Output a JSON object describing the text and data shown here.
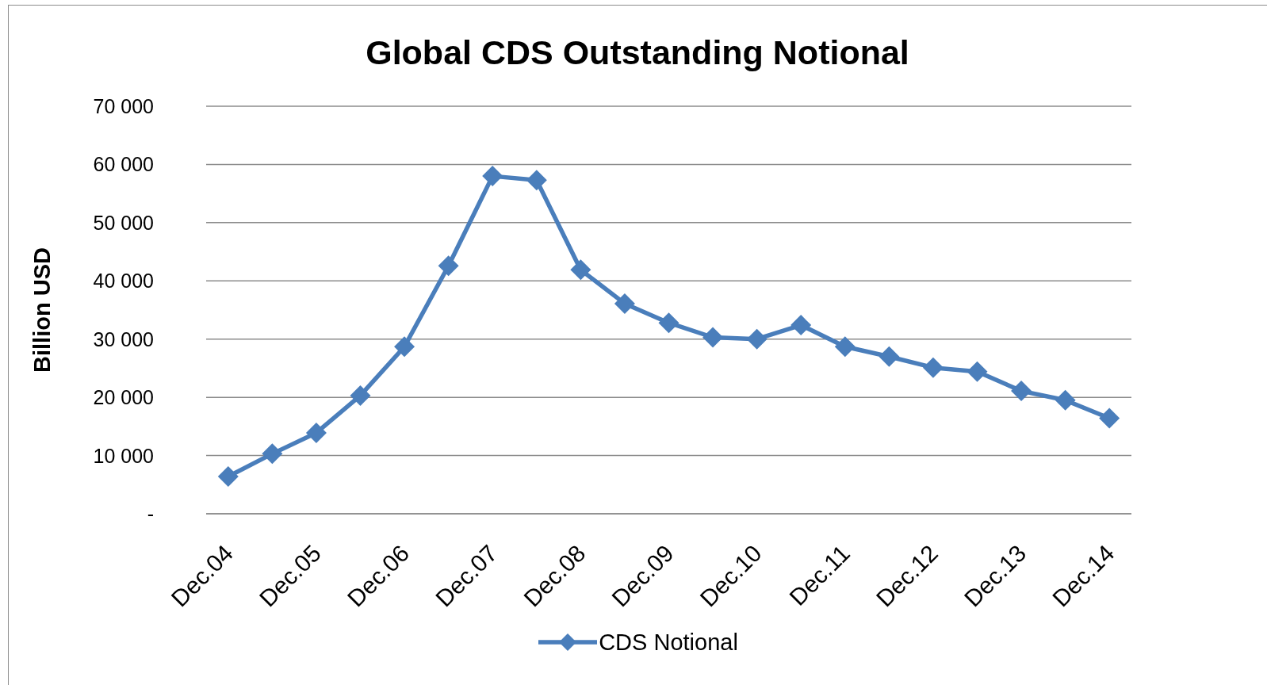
{
  "chart_data": {
    "type": "line",
    "title": "Global CDS Outstanding Notional",
    "ylabel": "Billion USD",
    "categories": [
      "Dec.04",
      null,
      "Dec.05",
      null,
      "Dec.06",
      null,
      "Dec.07",
      null,
      "Dec.08",
      null,
      "Dec.09",
      null,
      "Dec.10",
      null,
      "Dec.11",
      null,
      "Dec.12",
      null,
      "Dec.13",
      null,
      "Dec.14"
    ],
    "series": [
      {
        "name": "CDS Notional",
        "color": "#4a7ebb",
        "values": [
          6400,
          10300,
          13900,
          20300,
          28700,
          42600,
          58000,
          57300,
          41900,
          36100,
          32800,
          30300,
          30000,
          32400,
          28700,
          27000,
          25100,
          24400,
          21100,
          19500,
          16400
        ]
      }
    ],
    "ylim": [
      0,
      70000
    ],
    "yticks": [
      {
        "value": 0,
        "label": "-"
      },
      {
        "value": 10000,
        "label": "10 000"
      },
      {
        "value": 20000,
        "label": "20 000"
      },
      {
        "value": 30000,
        "label": "30 000"
      },
      {
        "value": 40000,
        "label": "40 000"
      },
      {
        "value": 50000,
        "label": "50 000"
      },
      {
        "value": 60000,
        "label": "60 000"
      },
      {
        "value": 70000,
        "label": "70 000"
      }
    ],
    "grid": "y",
    "legend": "bottom",
    "marker": "diamond",
    "line_style": "solid"
  }
}
